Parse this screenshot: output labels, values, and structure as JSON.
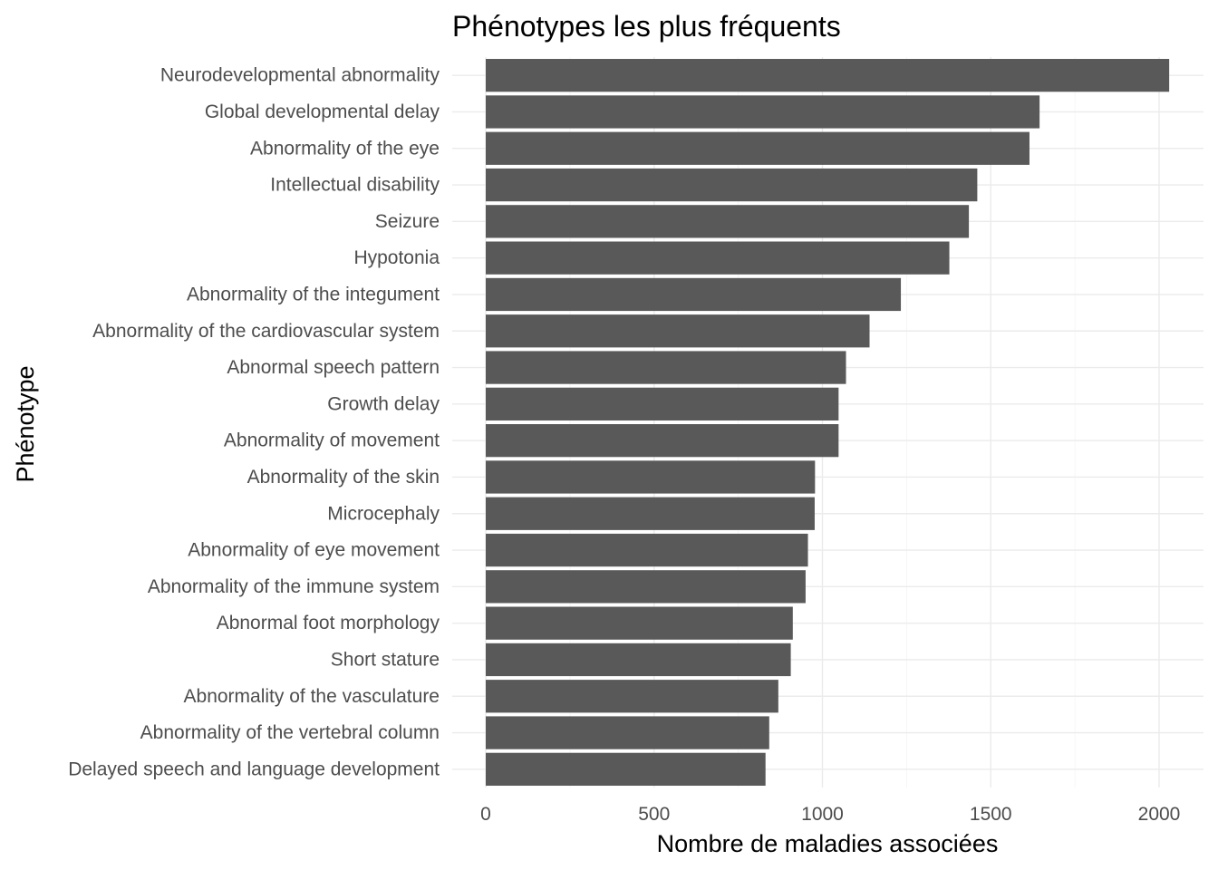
{
  "chart_data": {
    "type": "bar",
    "orientation": "horizontal",
    "title": "Phénotypes les plus fréquents",
    "xlabel": "Nombre de maladies associées",
    "ylabel": "Phénotype",
    "xlim": [
      0,
      2030
    ],
    "xticks": [
      0,
      500,
      1000,
      1500,
      2000
    ],
    "grid": true,
    "bar_color": "#595959",
    "categories": [
      "Neurodevelopmental abnormality",
      "Global developmental delay",
      "Abnormality of the eye",
      "Intellectual disability",
      "Seizure",
      "Hypotonia",
      "Abnormality of the integument",
      "Abnormality of the cardiovascular system",
      "Abnormal speech pattern",
      "Growth delay",
      "Abnormality of movement",
      "Abnormality of the skin",
      "Microcephaly",
      "Abnormality of eye movement",
      "Abnormality of the immune system",
      "Abnormal foot morphology",
      "Short stature",
      "Abnormality of the vasculature",
      "Abnormality of the vertebral column",
      "Delayed speech and language development"
    ],
    "values": [
      2030,
      1645,
      1615,
      1460,
      1435,
      1377,
      1233,
      1140,
      1070,
      1048,
      1048,
      978,
      977,
      957,
      950,
      912,
      906,
      869,
      842,
      831
    ]
  }
}
